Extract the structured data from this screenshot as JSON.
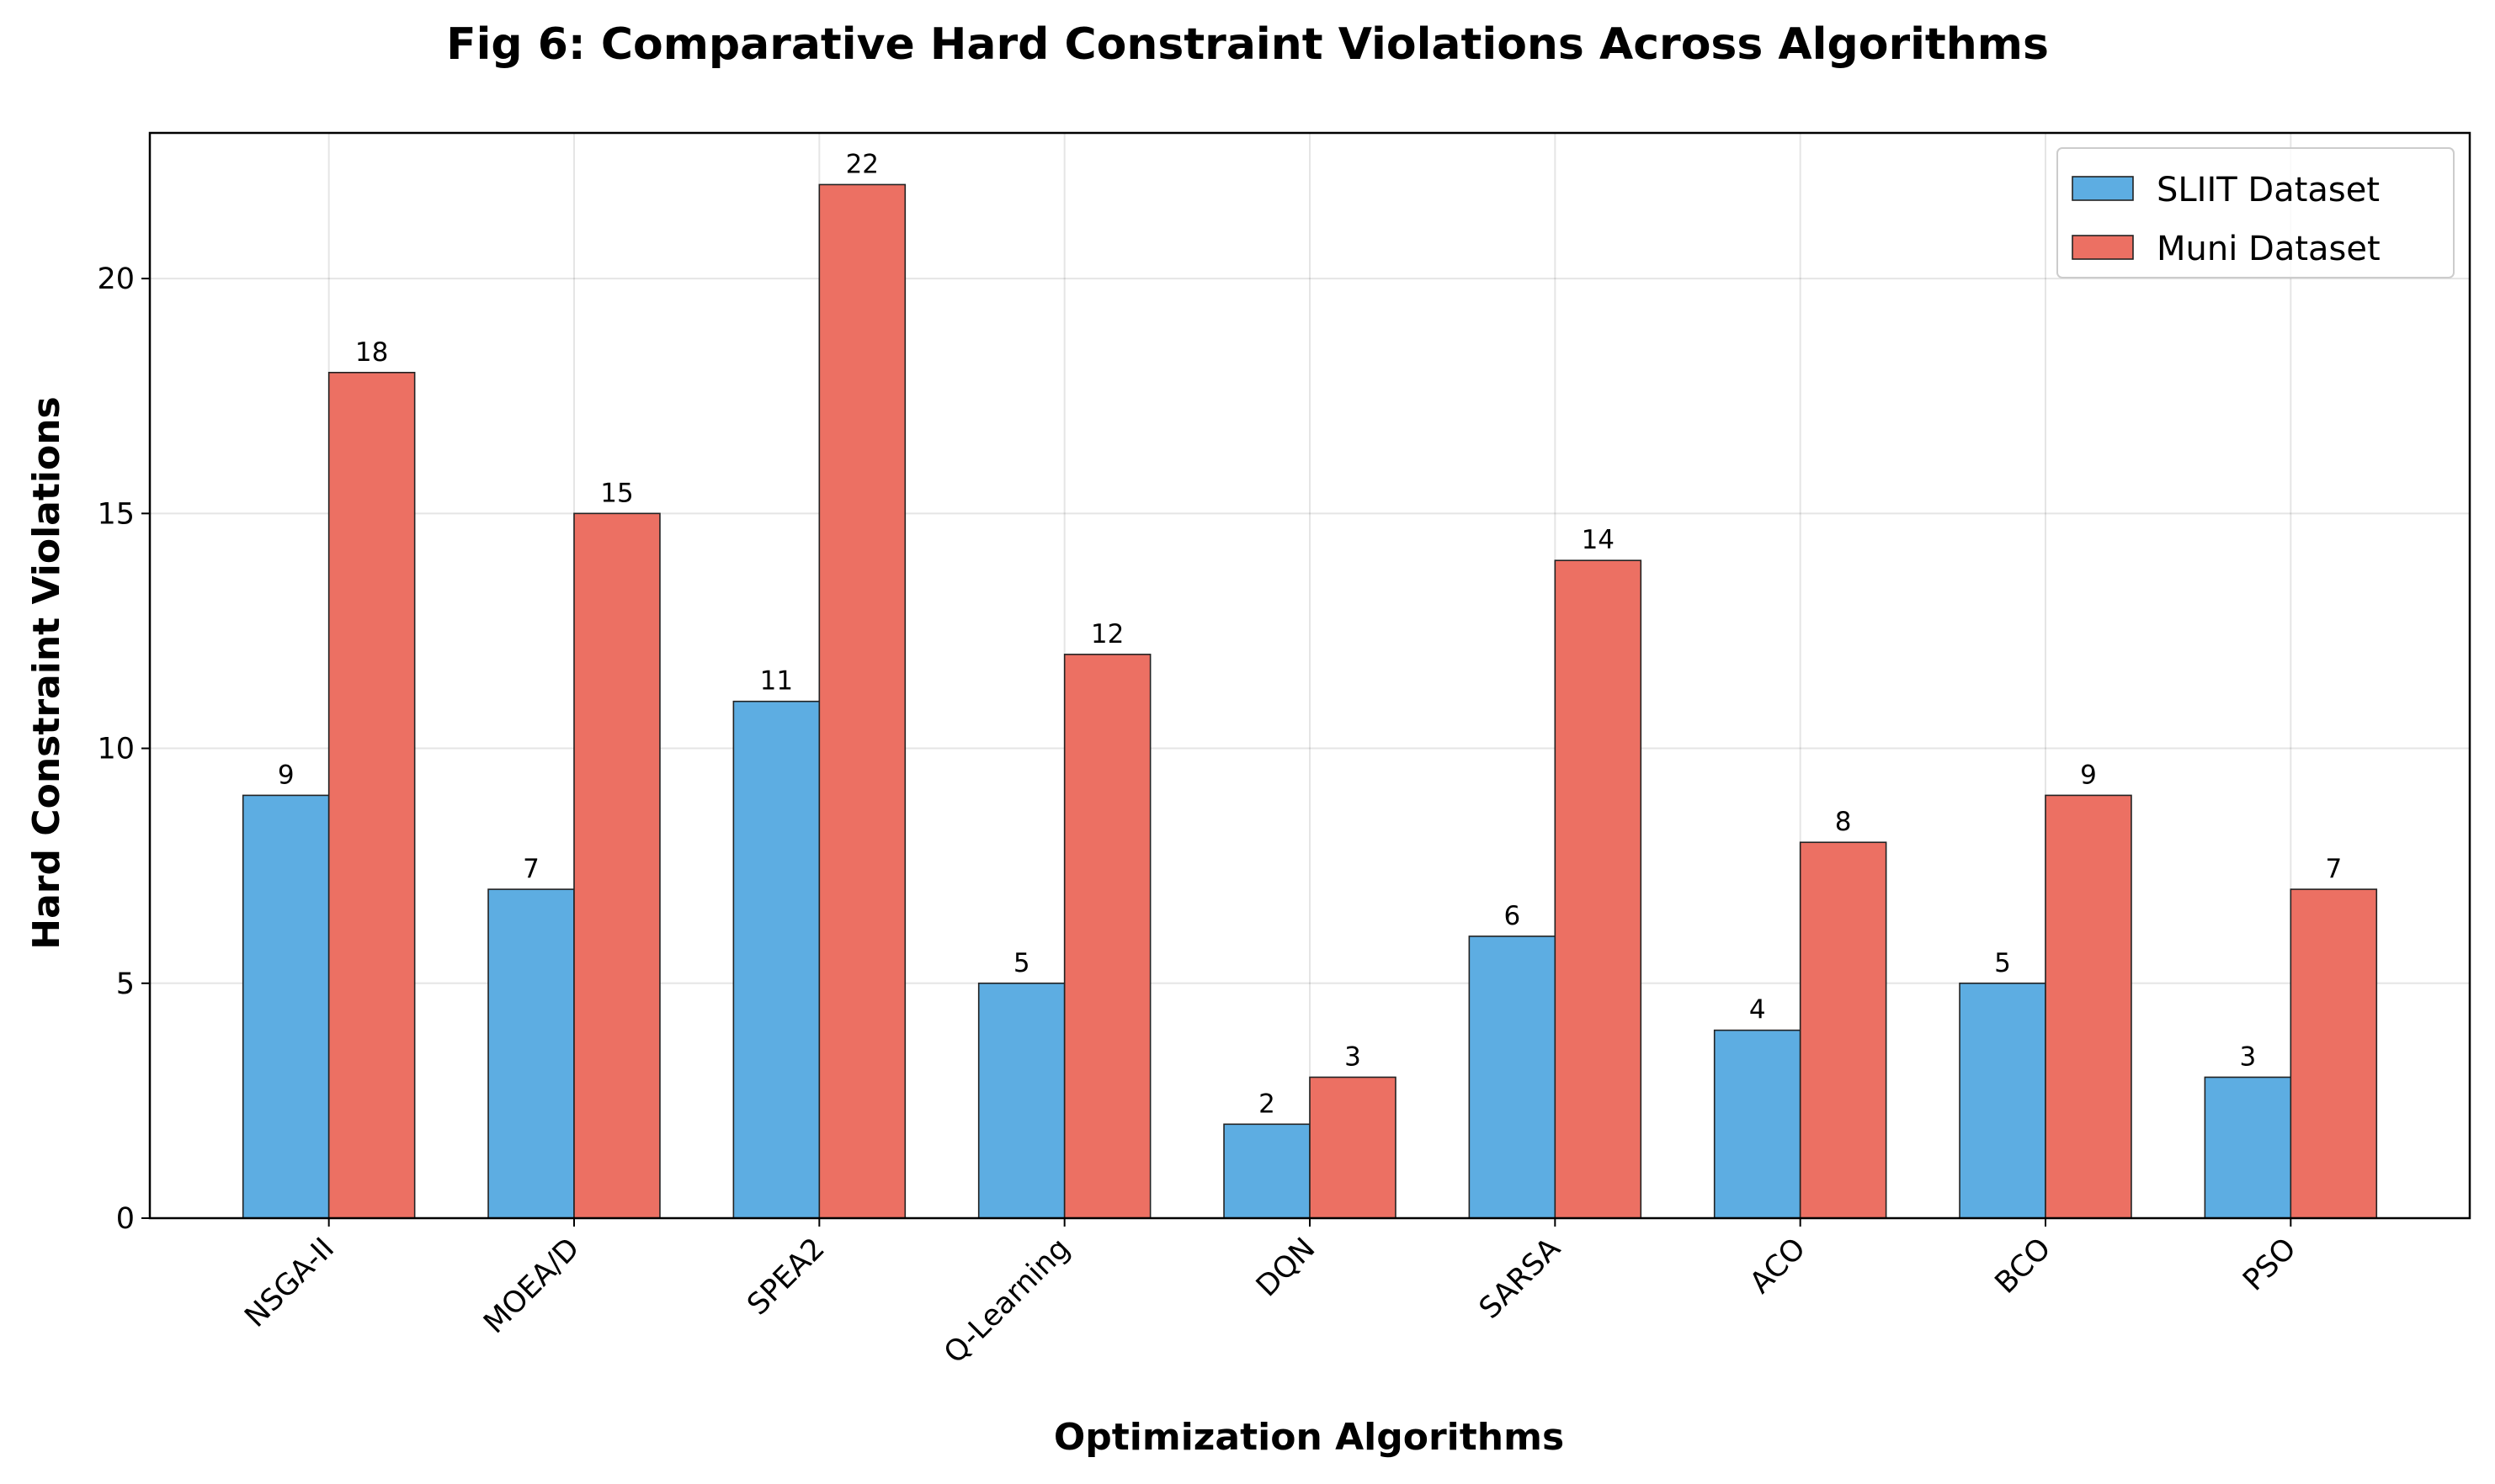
{
  "chart_data": {
    "type": "bar",
    "title": "Fig 6: Comparative Hard Constraint Violations Across Algorithms",
    "xlabel": "Optimization Algorithms",
    "ylabel": "Hard Constraint Violations",
    "categories": [
      "NSGA-II",
      "MOEA/D",
      "SPEA2",
      "Q-Learning",
      "DQN",
      "SARSA",
      "ACO",
      "BCO",
      "PSO"
    ],
    "series": [
      {
        "name": "SLIIT Dataset",
        "color": "#5DADE2",
        "values": [
          9,
          7,
          11,
          5,
          2,
          6,
          4,
          5,
          3
        ]
      },
      {
        "name": "Muni Dataset",
        "color": "#EC7063",
        "values": [
          18,
          15,
          22,
          12,
          3,
          14,
          8,
          9,
          7
        ]
      }
    ],
    "ylim": [
      0,
      23.1
    ],
    "yticks": [
      0,
      5,
      10,
      15,
      20
    ],
    "grid": true,
    "legend": "top-right"
  }
}
